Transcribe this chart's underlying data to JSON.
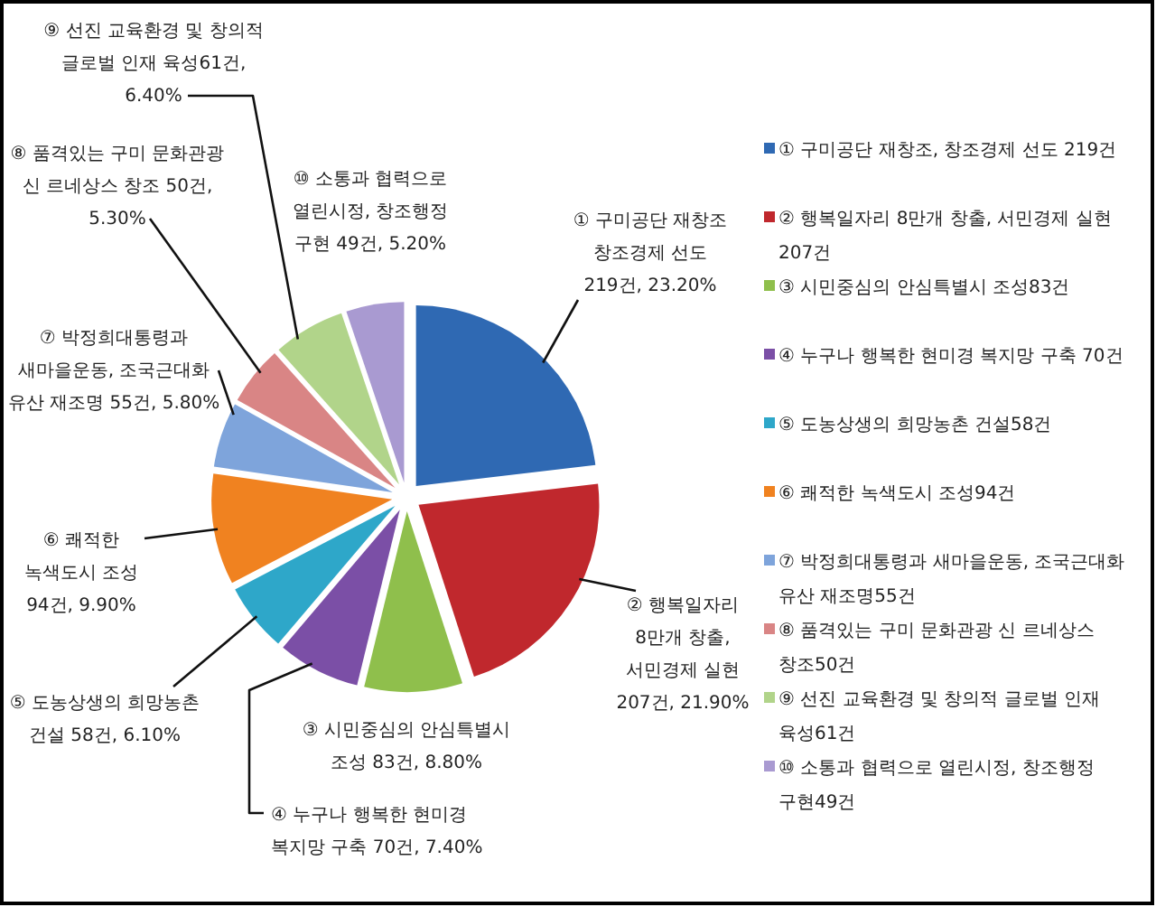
{
  "chart_data": {
    "type": "pie",
    "categories": [
      "① 구미공단 재창조, 창조경제 선도 219건",
      "② 행복일자리 8만개 창출, 서민경제 실현\n207건",
      "③ 시민중심의 안심특별시 조성83건",
      "④ 누구나 행복한 현미경 복지망 구축 70건",
      "⑤ 도농상생의 희망농촌 건설58건",
      "⑥ 쾌적한 녹색도시 조성94건",
      "⑦ 박정희대통령과 새마을운동, 조국근대화\n유산 재조명55건",
      "⑧ 품격있는 구미 문화관광 신 르네상스\n창조50건",
      "⑨ 선진 교육환경 및 창의적 글로벌 인재\n육성61건",
      "⑩ 소통과 협력으로 열린시정, 창조행정\n구현49건"
    ],
    "values": [
      219,
      207,
      83,
      70,
      58,
      94,
      55,
      50,
      61,
      49
    ],
    "colors": [
      "#2f69b3",
      "#c0282d",
      "#8fbf4c",
      "#7b4fa6",
      "#2ea7c9",
      "#f08220",
      "#7ea4db",
      "#d98585",
      "#b1d48a",
      "#a99ad1"
    ],
    "value_labels": [
      "① 구미공단 재창조\n창조경제 선도\n219건, 23.20%",
      "② 행복일자리\n8만개 창출,\n서민경제 실현\n207건, 21.90%",
      "③ 시민중심의 안심특별시\n조성 83건, 8.80%",
      "④ 누구나 행복한 현미경\n복지망 구축 70건, 7.40%",
      "⑤ 도농상생의 희망농촌\n건설 58건, 6.10%",
      "⑥ 쾌적한\n녹색도시 조성\n94건, 9.90%",
      "⑦ 박정희대통령과\n새마을운동, 조국근대화\n유산 재조명 55건, 5.80%",
      "⑧ 품격있는 구미 문화관광\n신 르네상스 창조 50건,\n5.30%",
      "⑨ 선진 교육환경 및 창의적\n글로벌 인재 육성61건,\n6.40%",
      "⑩ 소통과 협력으로\n열린시정, 창조행정\n구현 49건, 5.20%"
    ],
    "legend": "right"
  }
}
